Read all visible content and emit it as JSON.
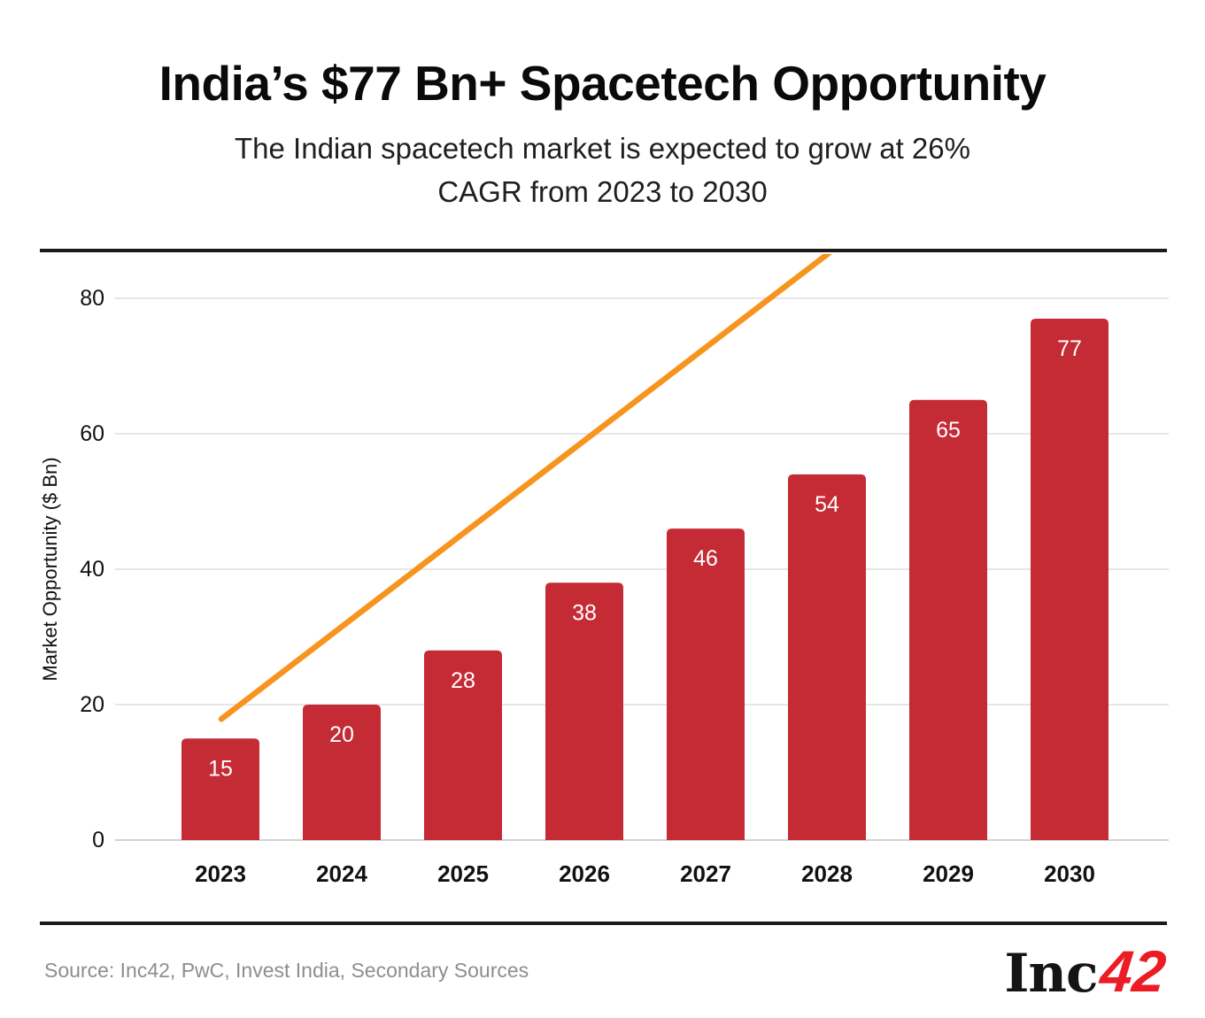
{
  "header": {
    "title": "India’s $77 Bn+ Spacetech Opportunity",
    "subtitle_lines": [
      "The Indian spacetech market is expected to grow at 26%",
      "CAGR from 2023 to 2030"
    ]
  },
  "chart_data": {
    "type": "bar",
    "categories": [
      "2023",
      "2024",
      "2025",
      "2026",
      "2027",
      "2028",
      "2029",
      "2030"
    ],
    "values": [
      15,
      20,
      28,
      38,
      46,
      54,
      65,
      77
    ],
    "title": "India’s $77 Bn+ Spacetech Opportunity",
    "xlabel": "",
    "ylabel": "Market Opportunity ($ Bn)",
    "ylim": [
      0,
      80
    ],
    "yticks": [
      0,
      20,
      40,
      60,
      80
    ],
    "grid": true,
    "legend": "none",
    "bar_color": "#C42B35",
    "bar_label_color": "#FFFFFF",
    "gridline_color": "#DEDEDE",
    "baseline_color": "#C4C4C4",
    "trend_arrow": {
      "color": "#F7941E",
      "from_year": "2023",
      "to_year": "2030"
    }
  },
  "footer": {
    "source": "Source: Inc42, PwC, Invest India, Secondary Sources",
    "logo": {
      "inc": "Inc",
      "num": "42",
      "red": "#EC1C24"
    }
  }
}
